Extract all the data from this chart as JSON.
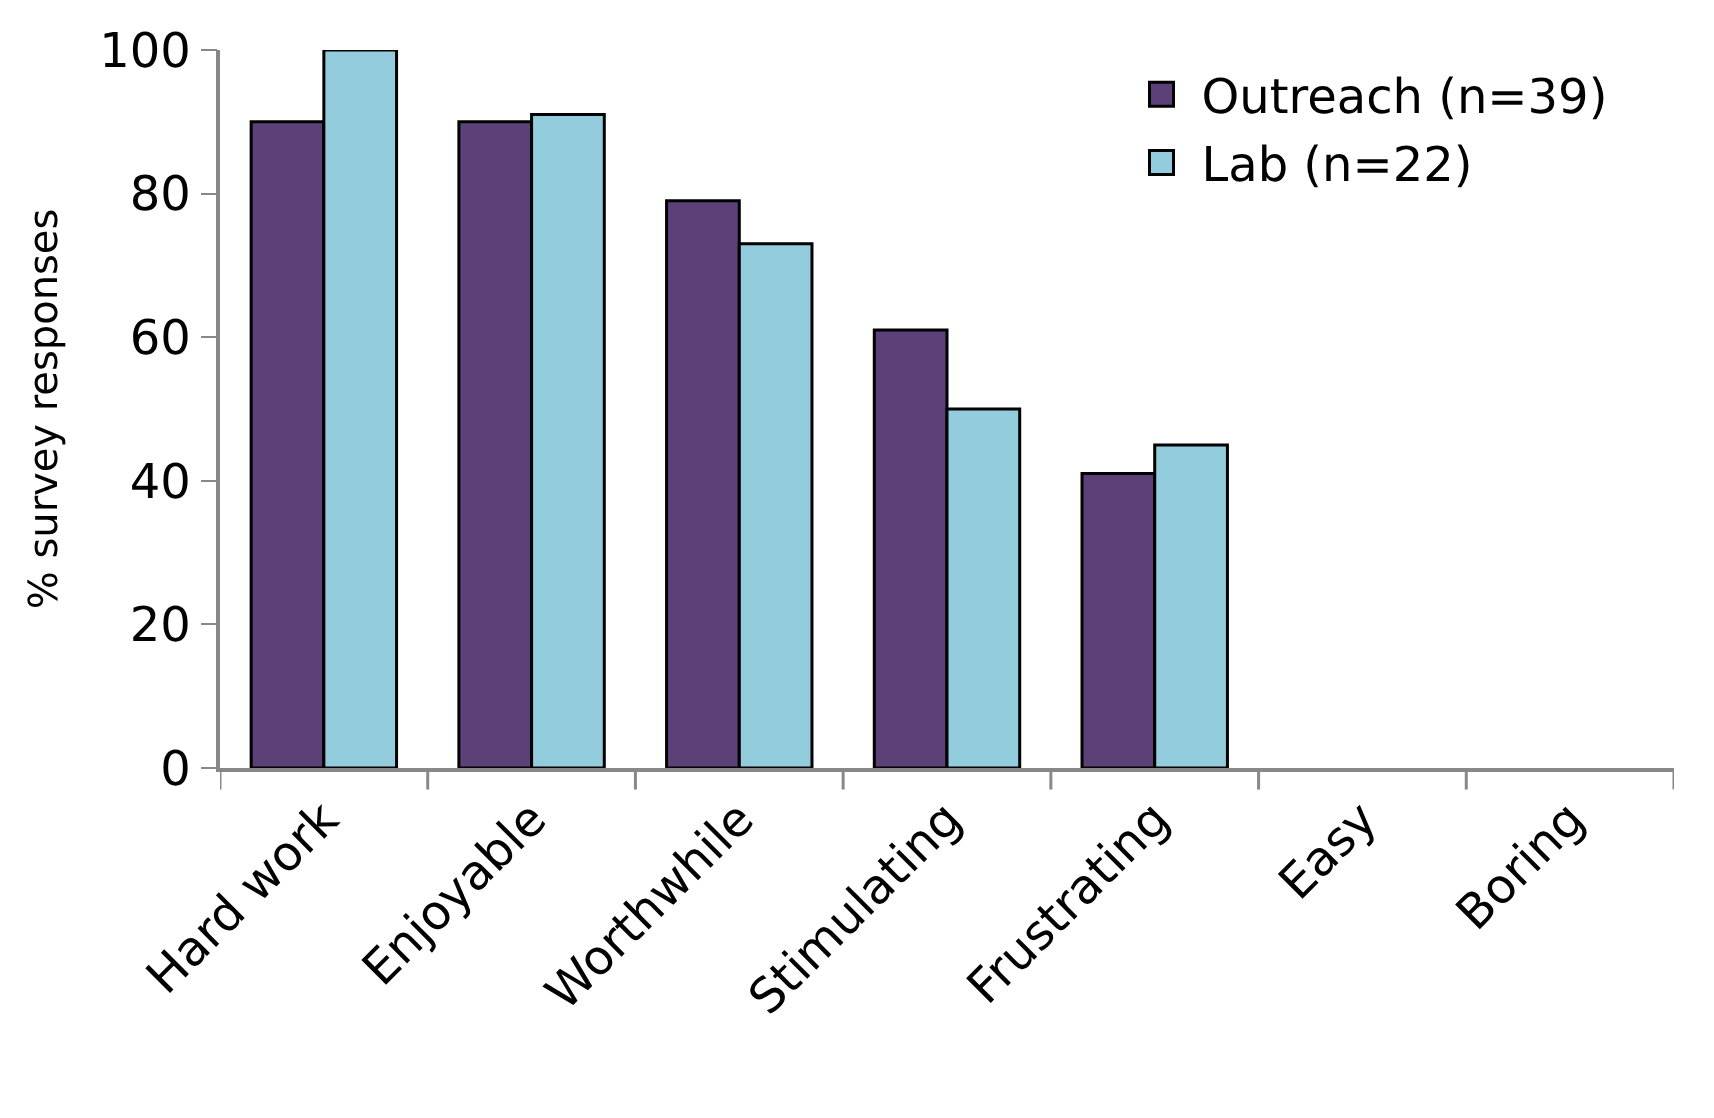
{
  "chart_data": {
    "type": "bar",
    "ylabel": "% survey responses",
    "categories": [
      "Hard work",
      "Enjoyable",
      "Worthwhile",
      "Stimulating",
      "Frustrating",
      "Easy",
      "Boring"
    ],
    "series": [
      {
        "name": "Outreach (n=39)",
        "color": "#5c4178",
        "values": [
          90,
          90,
          79,
          61,
          41,
          0,
          0
        ]
      },
      {
        "name": "Lab (n=22)",
        "color": "#93cddd",
        "values": [
          100,
          91,
          73,
          50,
          45,
          0,
          0
        ]
      }
    ],
    "ylim": [
      0,
      100
    ],
    "yticks": [
      0,
      20,
      40,
      60,
      80,
      100
    ],
    "legend": "top right"
  }
}
